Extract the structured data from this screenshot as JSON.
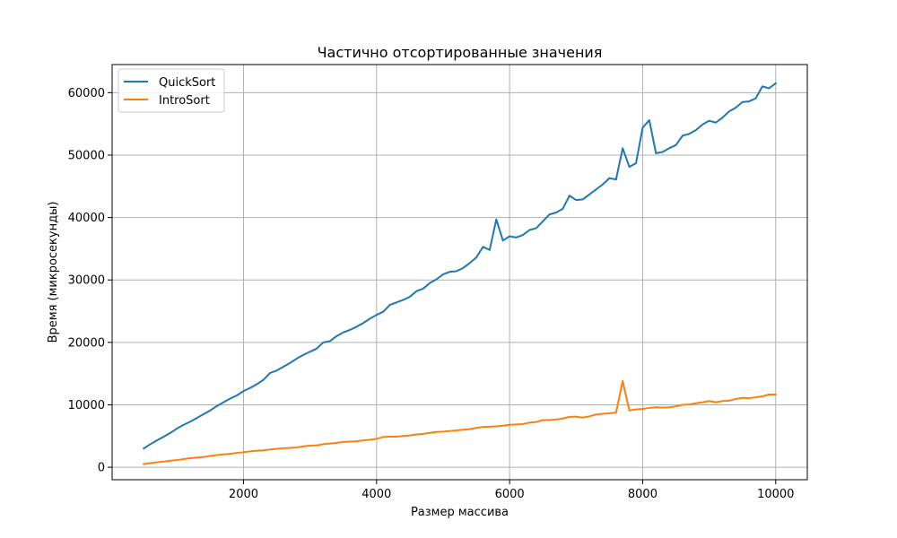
{
  "chart_data": {
    "type": "line",
    "title": "Частично отсортированные значения",
    "xlabel": "Размер массива",
    "ylabel": "Время (микросекунды)",
    "xlim": [
      25,
      10475
    ],
    "ylim": [
      -2000,
      64500
    ],
    "xticks": [
      2000,
      4000,
      6000,
      8000,
      10000
    ],
    "yticks": [
      0,
      10000,
      20000,
      30000,
      40000,
      50000,
      60000
    ],
    "grid": true,
    "legend_position": "top-left",
    "x": [
      500,
      600,
      700,
      800,
      900,
      1000,
      1100,
      1200,
      1300,
      1400,
      1500,
      1600,
      1700,
      1800,
      1900,
      2000,
      2100,
      2200,
      2300,
      2400,
      2500,
      2600,
      2700,
      2800,
      2900,
      3000,
      3100,
      3200,
      3300,
      3400,
      3500,
      3600,
      3700,
      3800,
      3900,
      4000,
      4100,
      4200,
      4300,
      4400,
      4500,
      4600,
      4700,
      4800,
      4900,
      5000,
      5100,
      5200,
      5300,
      5400,
      5500,
      5600,
      5700,
      5800,
      5900,
      6000,
      6100,
      6200,
      6300,
      6400,
      6500,
      6600,
      6700,
      6800,
      6900,
      7000,
      7100,
      7200,
      7300,
      7400,
      7500,
      7600,
      7700,
      7800,
      7900,
      8000,
      8100,
      8200,
      8300,
      8400,
      8500,
      8600,
      8700,
      8800,
      8900,
      9000,
      9100,
      9200,
      9300,
      9400,
      9500,
      9600,
      9700,
      9800,
      9900,
      10000
    ],
    "series": [
      {
        "name": "QuickSort",
        "color": "#1f77b4",
        "values": [
          3000,
          3700,
          4300,
          4900,
          5500,
          6200,
          6800,
          7300,
          7900,
          8500,
          9100,
          9800,
          10400,
          11000,
          11500,
          12200,
          12700,
          13300,
          14000,
          15100,
          15500,
          16100,
          16700,
          17400,
          18000,
          18500,
          19000,
          20000,
          20200,
          21000,
          21600,
          22000,
          22500,
          23100,
          23800,
          24400,
          24900,
          26000,
          26400,
          26800,
          27300,
          28200,
          28600,
          29500,
          30100,
          30900,
          31300,
          31400,
          31900,
          32700,
          33600,
          35300,
          34800,
          39700,
          36300,
          37000,
          36800,
          37200,
          38000,
          38300,
          39400,
          40500,
          40800,
          41400,
          43500,
          42800,
          42900,
          43700,
          44500,
          45300,
          46300,
          46100,
          51100,
          48100,
          48700,
          54400,
          55600,
          50300,
          50500,
          51100,
          51600,
          53100,
          53400,
          54000,
          54900,
          55500,
          55200,
          56000,
          57000,
          57600,
          58500,
          58600,
          59100,
          61000,
          60700,
          61500
        ]
      },
      {
        "name": "IntroSort",
        "color": "#ff7f0e",
        "values": [
          500,
          650,
          800,
          900,
          1050,
          1150,
          1300,
          1450,
          1550,
          1650,
          1800,
          1950,
          2050,
          2150,
          2300,
          2400,
          2550,
          2650,
          2700,
          2850,
          2950,
          3050,
          3100,
          3150,
          3350,
          3450,
          3500,
          3700,
          3800,
          3900,
          4050,
          4100,
          4150,
          4300,
          4400,
          4550,
          4850,
          4900,
          4900,
          5000,
          5100,
          5250,
          5350,
          5500,
          5650,
          5700,
          5800,
          5900,
          6000,
          6100,
          6300,
          6450,
          6500,
          6550,
          6650,
          6800,
          6850,
          6900,
          7150,
          7250,
          7550,
          7550,
          7650,
          7800,
          8050,
          8100,
          7950,
          8150,
          8450,
          8550,
          8650,
          8750,
          13800,
          9100,
          9250,
          9350,
          9500,
          9600,
          9550,
          9600,
          9750,
          10000,
          10050,
          10250,
          10400,
          10600,
          10400,
          10600,
          10650,
          10950,
          11100,
          11050,
          11200,
          11350,
          11650,
          11650
        ]
      }
    ]
  }
}
